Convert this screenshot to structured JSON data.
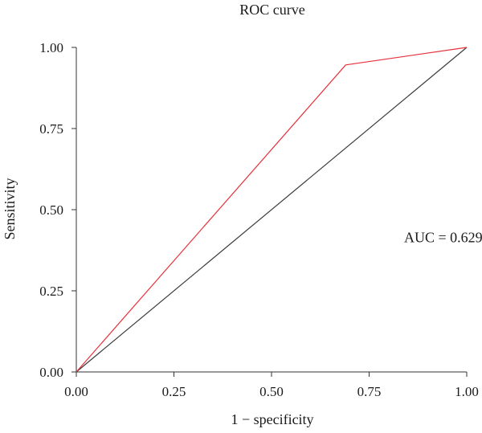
{
  "chart_data": {
    "type": "line",
    "title": "ROC curve",
    "xlabel": "1 − specificity",
    "ylabel": "Sensitivity",
    "xlim": [
      0,
      1
    ],
    "ylim": [
      0,
      1
    ],
    "x_ticks": [
      0,
      0.25,
      0.5,
      0.75,
      1
    ],
    "x_tick_labels": [
      "0.00",
      "0.25",
      "0.50",
      "0.75",
      "1.00"
    ],
    "y_ticks": [
      0,
      0.25,
      0.5,
      0.75,
      1
    ],
    "y_tick_labels": [
      "0.00",
      "0.25",
      "0.50",
      "0.75",
      "1.00"
    ],
    "grid": false,
    "series": [
      {
        "x": [
          0,
          0.69,
          1
        ],
        "y": [
          0,
          0.946,
          1
        ],
        "color": "#e8303a"
      },
      {
        "x": [
          0,
          1
        ],
        "y": [
          0,
          1
        ],
        "color": "#3c3c3c"
      }
    ],
    "annotations": [
      {
        "text": "AUC = 0.629",
        "x": 0.94,
        "y": 0.4
      }
    ]
  }
}
